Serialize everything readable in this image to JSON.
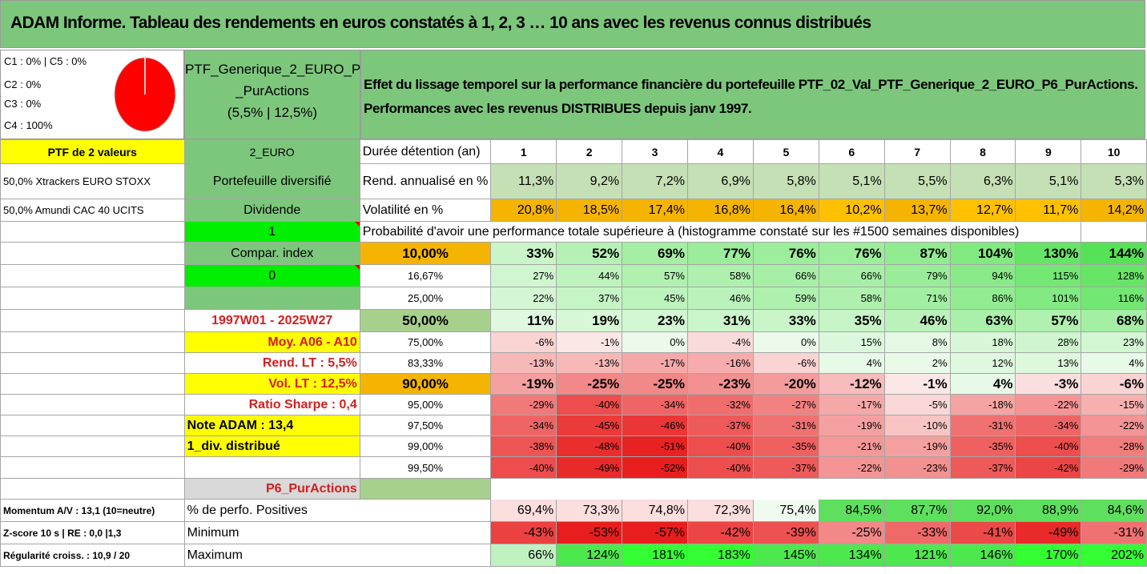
{
  "title": "ADAM Informe. Tableau des rendements en euros constatés à 1, 2, 3 … 10 ans avec les revenus connus distribués",
  "legend": [
    "C1 : 0% | C5 : 0%",
    "C2 : 0%",
    "C3 : 0%",
    "C4 : 100%"
  ],
  "pie_color": "#ff0000",
  "portfolio": {
    "line1": "PTF_Generique_2_EURO_P6",
    "line2": "_PurActions",
    "line3": "(5,5% | 12,5%)"
  },
  "effect": {
    "line1": "Effet du lissage temporel sur la performance financière du portefeuille PTF_02_Val_PTF_Generique_2_EURO_P6_PurActions.",
    "line2": "Performances avec les revenus DISTRIBUES depuis janv 1997."
  },
  "left": {
    "ptf_count": "PTF de 2 valeurs",
    "asset1": "50,0% Xtrackers EURO STOXX",
    "asset2": "50,0% Amundi CAC 40 UCITS",
    "currency": "2_EURO",
    "diversified": "Portefeuille diversifié",
    "dividend": "Dividende",
    "one": "1",
    "compar": "Compar. index",
    "zero": "0",
    "period": "1997W01 - 2025W27",
    "moy": "Moy. A06 - A10",
    "rend_lt": "Rend. LT : 5,5%",
    "vol_lt": "Vol. LT : 12,5%",
    "sharpe": "Ratio Sharpe : 0,4",
    "note": "Note ADAM : 13,4",
    "div": "1_div. distribué",
    "p6": "P6_PurActions",
    "momentum": "Momentum A/V : 13,1 (10=neutre)",
    "zscore": "Z-score 10 s | RE : 0,0 |1,3",
    "regularite": "Régularité croiss. : 10,9 / 20"
  },
  "header": {
    "label": "Durée détention (an)",
    "years": [
      "1",
      "2",
      "3",
      "4",
      "5",
      "6",
      "7",
      "8",
      "9",
      "10"
    ]
  },
  "rend": {
    "label": "Rend. annualisé en %",
    "values": [
      "11,3%",
      "9,2%",
      "7,2%",
      "6,9%",
      "5,8%",
      "5,1%",
      "5,5%",
      "6,3%",
      "5,1%",
      "5,3%"
    ]
  },
  "vol": {
    "label": "Volatilité en %",
    "values": [
      "20,8%",
      "18,5%",
      "17,4%",
      "16,8%",
      "16,4%",
      "10,2%",
      "13,7%",
      "12,7%",
      "11,7%",
      "14,2%"
    ]
  },
  "prob_title": "Probabilité d'avoir une performance totale supérieure à (histogramme constaté sur les #1500 semaines disponibles)",
  "prob_rows": [
    {
      "p": "10,00%",
      "v": [
        "33%",
        "52%",
        "69%",
        "77%",
        "76%",
        "76%",
        "87%",
        "104%",
        "130%",
        "144%"
      ],
      "big": true
    },
    {
      "p": "16,67%",
      "v": [
        "27%",
        "44%",
        "57%",
        "58%",
        "66%",
        "66%",
        "79%",
        "94%",
        "115%",
        "128%"
      ]
    },
    {
      "p": "25,00%",
      "v": [
        "22%",
        "37%",
        "45%",
        "46%",
        "59%",
        "58%",
        "71%",
        "86%",
        "101%",
        "116%"
      ]
    },
    {
      "p": "50,00%",
      "v": [
        "11%",
        "19%",
        "23%",
        "31%",
        "33%",
        "35%",
        "46%",
        "63%",
        "57%",
        "68%"
      ],
      "big": true
    },
    {
      "p": "75,00%",
      "v": [
        "-6%",
        "-1%",
        "0%",
        "-4%",
        "0%",
        "15%",
        "8%",
        "18%",
        "28%",
        "23%"
      ]
    },
    {
      "p": "83,33%",
      "v": [
        "-13%",
        "-13%",
        "-17%",
        "-16%",
        "-6%",
        "4%",
        "2%",
        "12%",
        "13%",
        "4%"
      ]
    },
    {
      "p": "90,00%",
      "v": [
        "-19%",
        "-25%",
        "-25%",
        "-23%",
        "-20%",
        "-12%",
        "-1%",
        "4%",
        "-3%",
        "-6%"
      ],
      "big": true
    },
    {
      "p": "95,00%",
      "v": [
        "-29%",
        "-40%",
        "-34%",
        "-32%",
        "-27%",
        "-17%",
        "-5%",
        "-18%",
        "-22%",
        "-15%"
      ]
    },
    {
      "p": "97,50%",
      "v": [
        "-34%",
        "-45%",
        "-46%",
        "-37%",
        "-31%",
        "-19%",
        "-10%",
        "-31%",
        "-34%",
        "-22%"
      ]
    },
    {
      "p": "99,00%",
      "v": [
        "-38%",
        "-48%",
        "-51%",
        "-40%",
        "-35%",
        "-21%",
        "-19%",
        "-35%",
        "-40%",
        "-28%"
      ]
    },
    {
      "p": "99,50%",
      "v": [
        "-40%",
        "-49%",
        "-52%",
        "-40%",
        "-37%",
        "-22%",
        "-23%",
        "-37%",
        "-42%",
        "-29%"
      ]
    }
  ],
  "positives": {
    "label": "% de perfo. Positives",
    "values": [
      "69,4%",
      "73,3%",
      "74,8%",
      "72,3%",
      "75,4%",
      "84,5%",
      "87,7%",
      "92,0%",
      "88,9%",
      "84,6%"
    ]
  },
  "minimum": {
    "label": "Minimum",
    "values": [
      "-43%",
      "-53%",
      "-57%",
      "-42%",
      "-39%",
      "-25%",
      "-33%",
      "-41%",
      "-49%",
      "-31%"
    ]
  },
  "maximum": {
    "label": "Maximum",
    "values": [
      "66%",
      "124%",
      "181%",
      "183%",
      "145%",
      "134%",
      "121%",
      "146%",
      "170%",
      "202%"
    ]
  }
}
